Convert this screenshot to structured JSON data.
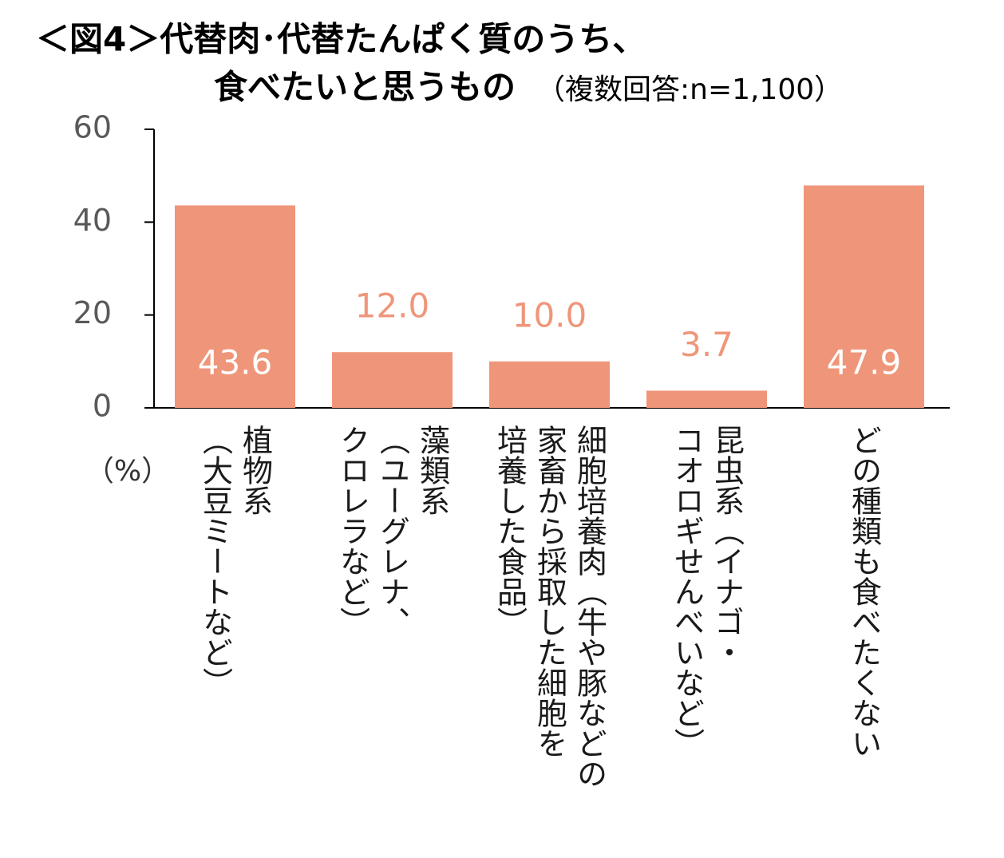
{
  "chart_data": {
    "type": "bar",
    "title": "＜図4＞代替肉･代替たんぱく質のうち、",
    "title_line2": "食べたいと思うもの",
    "subtitle": "（複数回答:n=1,100）",
    "y_label": "（%）",
    "categories": [
      "植物系\n（大豆ミートなど）",
      "藻類系\n（ユーグレナ、\nクロレラなど）",
      "細胞培養肉（牛や豚などの\n家畜から採取した細胞を\n培養した食品）",
      "昆虫系（イナゴ・\nコオロギせんべいなど）",
      "どの種類も食べたくない"
    ],
    "values": [
      43.6,
      12.0,
      10.0,
      3.7,
      47.9
    ],
    "value_labels": [
      "43.6",
      "12.0",
      "10.0",
      "3.7",
      "47.9"
    ],
    "color": "#ef967a",
    "ylim": [
      0,
      60
    ],
    "yticks": [
      0,
      20,
      40,
      60
    ]
  }
}
